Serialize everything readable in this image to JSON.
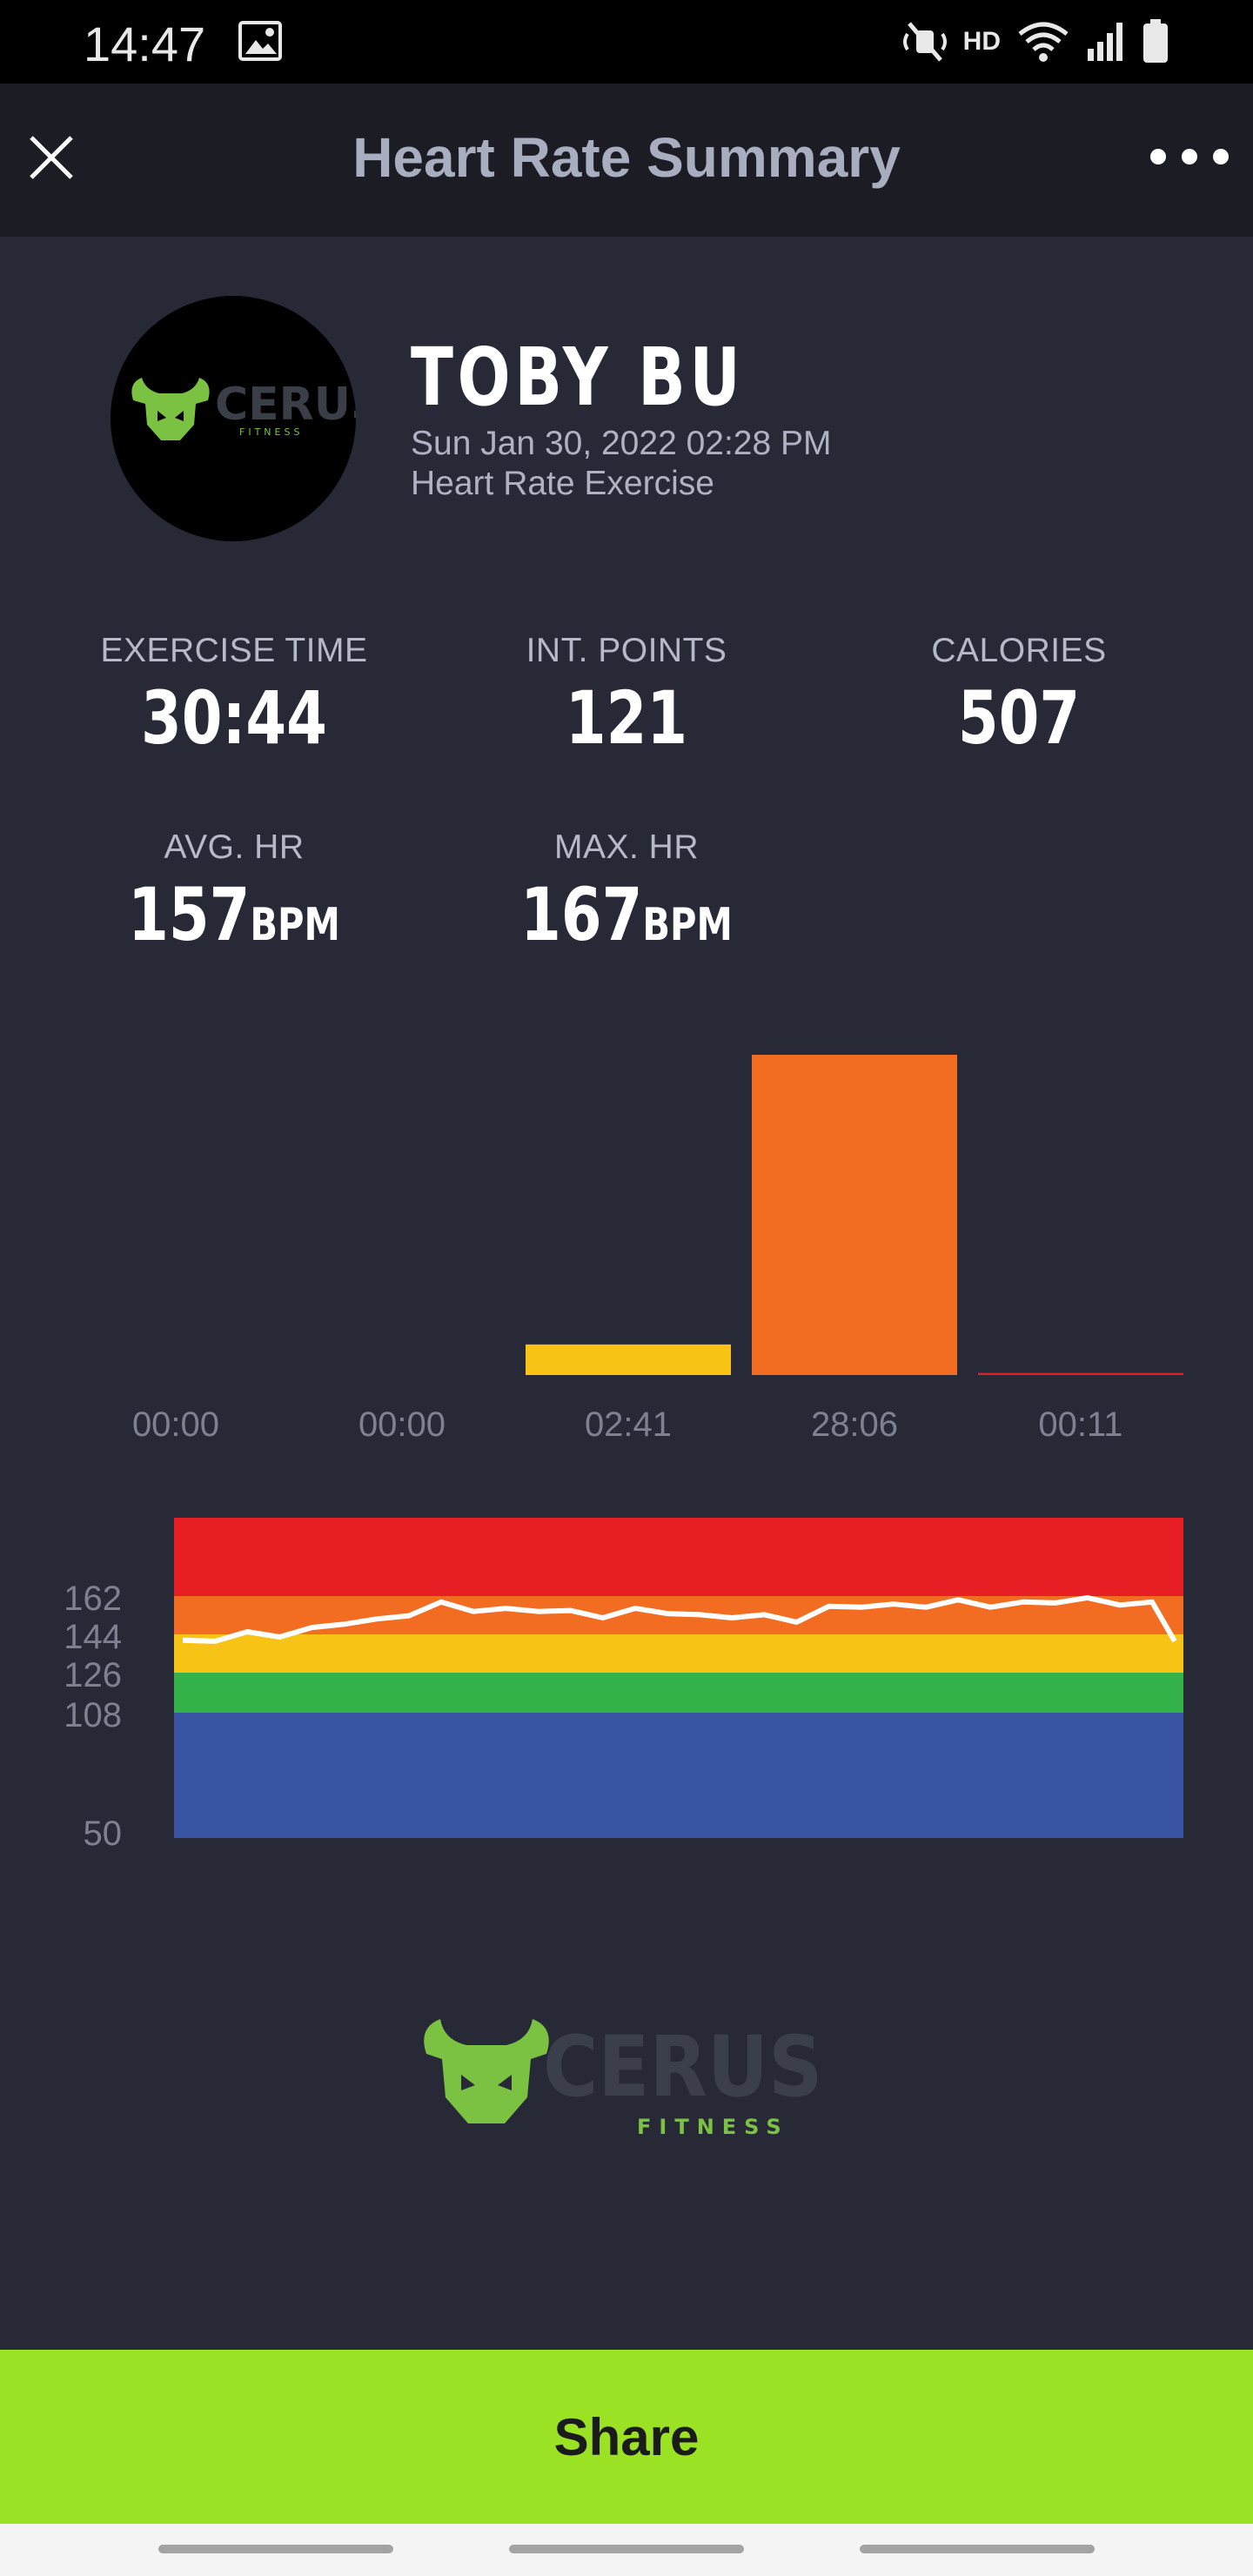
{
  "status_bar": {
    "time": "14:47",
    "network_label": "HD",
    "icons": [
      "image-icon",
      "mute-icon",
      "wifi-icon",
      "signal-icon",
      "battery-icon"
    ]
  },
  "app_bar": {
    "title": "Heart Rate Summary",
    "close_icon": "close-icon",
    "more_icon": "more-options-icon"
  },
  "profile": {
    "avatar_brand_text": "CERUS",
    "avatar_brand_sub": "FITNESS",
    "name": "TOBY BU",
    "date": "Sun Jan 30, 2022 02:28 PM",
    "workout_type": "Heart Rate Exercise"
  },
  "stats": {
    "exercise_time": {
      "label": "EXERCISE TIME",
      "value": "30:44"
    },
    "int_points": {
      "label": "INT. POINTS",
      "value": "121"
    },
    "calories": {
      "label": "CALORIES",
      "value": "507"
    },
    "avg_hr": {
      "label": "AVG. HR",
      "value": "157",
      "unit": "BPM"
    },
    "max_hr": {
      "label": "MAX. HR",
      "value": "167",
      "unit": "BPM"
    }
  },
  "chart_data": [
    {
      "type": "bar",
      "categories": [
        "00:00",
        "00:00",
        "02:41",
        "28:06",
        "00:11"
      ],
      "values": [
        0,
        0,
        161,
        1686,
        11
      ],
      "colors": [
        "#3a55a4",
        "#33b249",
        "#f7c416",
        "#f26c21",
        "#e81e25"
      ]
    },
    {
      "type": "line",
      "y_ticks": [
        "162",
        "144",
        "126",
        "108",
        "50"
      ],
      "zones": [
        {
          "from": 50,
          "to": 108,
          "color": "#3a55a4"
        },
        {
          "from": 108,
          "to": 126,
          "color": "#33b249"
        },
        {
          "from": 126,
          "to": 144,
          "color": "#f7c416"
        },
        {
          "from": 144,
          "to": 162,
          "color": "#f26c21"
        },
        {
          "from": 162,
          "to": 180,
          "color": "#e81e25"
        }
      ],
      "x_minutes_range": [
        0,
        30.7
      ],
      "line_color": "#ffffff",
      "x": [
        0,
        1,
        2,
        3,
        4,
        5,
        6,
        7,
        8,
        9,
        10,
        11,
        12,
        13,
        14,
        15,
        16,
        17,
        18,
        19,
        20,
        21,
        22,
        23,
        24,
        25,
        26,
        27,
        28,
        29,
        30,
        30.7
      ],
      "y": [
        140,
        142,
        144,
        144,
        146,
        150,
        150,
        154,
        158,
        156,
        155,
        156,
        154,
        153,
        155,
        155,
        152,
        153,
        152,
        151,
        156,
        158,
        157,
        158,
        159,
        158,
        158,
        160,
        160,
        159,
        158,
        142
      ]
    }
  ],
  "brand": {
    "text": "CERUS",
    "sub": "FITNESS"
  },
  "share": {
    "label": "Share"
  }
}
